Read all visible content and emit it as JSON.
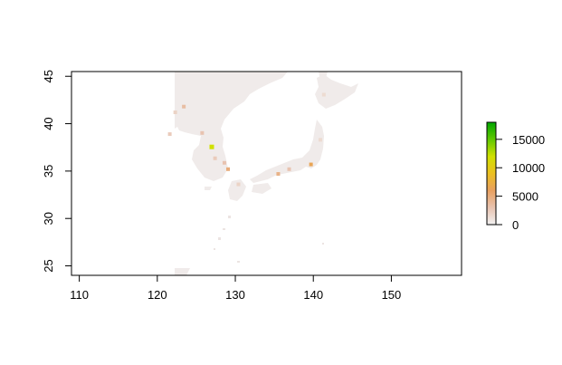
{
  "chart_data": {
    "type": "heatmap",
    "title": "",
    "xlabel": "",
    "ylabel": "",
    "xlim": [
      109,
      159
    ],
    "ylim": [
      24,
      45.5
    ],
    "x_ticks": [
      110,
      120,
      130,
      140,
      150
    ],
    "y_ticks": [
      25,
      30,
      35,
      40,
      45
    ],
    "x_tick_labels": [
      "110",
      "120",
      "130",
      "140",
      "150"
    ],
    "y_tick_labels": [
      "25",
      "30",
      "35",
      "40",
      "45"
    ],
    "legend": {
      "placement": "right",
      "range": [
        0,
        18000
      ],
      "ticks": [
        0,
        5000,
        10000,
        15000
      ],
      "tick_labels": [
        "0",
        "5000",
        "10000",
        "15000"
      ],
      "colors": [
        "#f2f2f2",
        "#e8c3b0",
        "#e8a060",
        "#ecc020",
        "#d0e000",
        "#60c800",
        "#00a600"
      ]
    },
    "hotspots": [
      {
        "lon": 126.98,
        "lat": 37.55,
        "value": 12000
      },
      {
        "lon": 139.7,
        "lat": 35.7,
        "value": 6500
      },
      {
        "lon": 135.5,
        "lat": 34.7,
        "value": 4500
      },
      {
        "lon": 129.07,
        "lat": 35.2,
        "value": 5000
      },
      {
        "lon": 128.6,
        "lat": 35.87,
        "value": 3000
      },
      {
        "lon": 123.4,
        "lat": 41.8,
        "value": 3500
      },
      {
        "lon": 125.75,
        "lat": 39.02,
        "value": 3000
      },
      {
        "lon": 127.4,
        "lat": 36.35,
        "value": 2500
      },
      {
        "lon": 136.9,
        "lat": 35.2,
        "value": 3000
      },
      {
        "lon": 130.4,
        "lat": 33.6,
        "value": 2000
      },
      {
        "lon": 141.35,
        "lat": 43.06,
        "value": 1500
      },
      {
        "lon": 122.3,
        "lat": 41.2,
        "value": 2000
      },
      {
        "lon": 121.6,
        "lat": 38.9,
        "value": 2500
      },
      {
        "lon": 140.9,
        "lat": 38.3,
        "value": 1500
      }
    ]
  }
}
